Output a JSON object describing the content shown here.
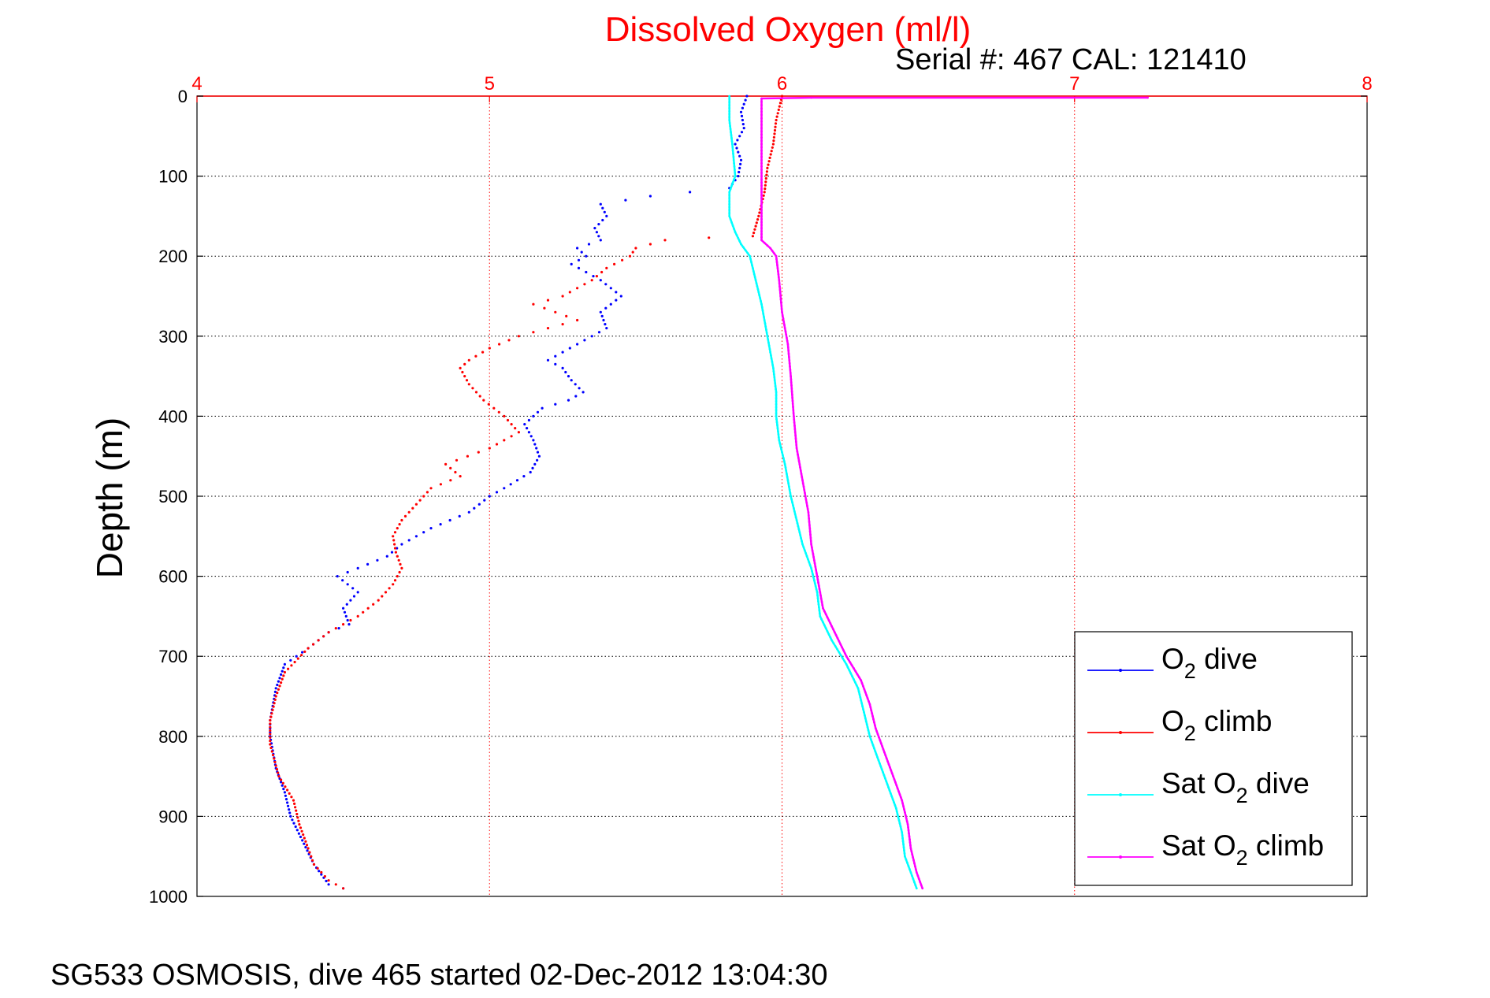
{
  "chart_data": {
    "type": "scatter",
    "title": "Dissolved Oxygen (ml/l)",
    "subtitle": "Serial #: 467  CAL: 121410",
    "xlabel": "",
    "ylabel": "Depth (m)",
    "xlim": [
      4,
      8
    ],
    "ylim": [
      1000,
      0
    ],
    "x_ticks": [
      "4",
      "5",
      "6",
      "7",
      "8"
    ],
    "y_ticks": [
      "0",
      "100",
      "200",
      "300",
      "400",
      "500",
      "600",
      "700",
      "800",
      "900",
      "1000"
    ],
    "grid": true,
    "legend_position": "bottom-right",
    "footer": "SG533 OSMOSIS, dive 465 started 02-Dec-2012 13:04:30",
    "colors": {
      "title": "#ff0000",
      "x_ticks": "#ff0000",
      "grid": "#000000",
      "x_grid": "#ff0000"
    },
    "series": [
      {
        "name": "O2 dive",
        "legend": {
          "base": "O",
          "sub": "2",
          "rest": " dive"
        },
        "color": "#0000ff",
        "style": "points",
        "points": [
          [
            5.88,
            0
          ],
          [
            5.86,
            20
          ],
          [
            5.87,
            40
          ],
          [
            5.84,
            60
          ],
          [
            5.86,
            80
          ],
          [
            5.85,
            100
          ],
          [
            5.82,
            115
          ],
          [
            5.55,
            125
          ],
          [
            5.38,
            135
          ],
          [
            5.4,
            150
          ],
          [
            5.36,
            165
          ],
          [
            5.38,
            180
          ],
          [
            5.3,
            190
          ],
          [
            5.33,
            200
          ],
          [
            5.28,
            210
          ],
          [
            5.38,
            230
          ],
          [
            5.45,
            250
          ],
          [
            5.38,
            270
          ],
          [
            5.4,
            290
          ],
          [
            5.3,
            310
          ],
          [
            5.2,
            330
          ],
          [
            5.25,
            340
          ],
          [
            5.28,
            355
          ],
          [
            5.32,
            370
          ],
          [
            5.27,
            380
          ],
          [
            5.18,
            390
          ],
          [
            5.12,
            410
          ],
          [
            5.15,
            430
          ],
          [
            5.17,
            450
          ],
          [
            5.14,
            470
          ],
          [
            5.05,
            490
          ],
          [
            5.0,
            500
          ],
          [
            4.93,
            520
          ],
          [
            4.8,
            540
          ],
          [
            4.7,
            560
          ],
          [
            4.65,
            575
          ],
          [
            4.55,
            590
          ],
          [
            4.48,
            600
          ],
          [
            4.55,
            620
          ],
          [
            4.5,
            640
          ],
          [
            4.52,
            660
          ],
          [
            4.45,
            670
          ],
          [
            4.38,
            690
          ],
          [
            4.3,
            710
          ],
          [
            4.27,
            740
          ],
          [
            4.25,
            780
          ],
          [
            4.25,
            800
          ],
          [
            4.27,
            840
          ],
          [
            4.3,
            870
          ],
          [
            4.32,
            900
          ],
          [
            4.36,
            930
          ],
          [
            4.4,
            960
          ],
          [
            4.45,
            985
          ],
          [
            4.5,
            990
          ]
        ]
      },
      {
        "name": "O2 climb",
        "legend": {
          "base": "O",
          "sub": "2",
          "rest": " climb"
        },
        "color": "#ff0000",
        "style": "points",
        "points": [
          [
            6.0,
            0
          ],
          [
            5.98,
            30
          ],
          [
            5.97,
            60
          ],
          [
            5.95,
            90
          ],
          [
            5.94,
            120
          ],
          [
            5.92,
            150
          ],
          [
            5.9,
            175
          ],
          [
            5.75,
            177
          ],
          [
            5.6,
            180
          ],
          [
            5.5,
            190
          ],
          [
            5.48,
            200
          ],
          [
            5.4,
            215
          ],
          [
            5.35,
            230
          ],
          [
            5.25,
            250
          ],
          [
            5.15,
            260
          ],
          [
            5.3,
            280
          ],
          [
            5.1,
            300
          ],
          [
            5.0,
            315
          ],
          [
            4.93,
            330
          ],
          [
            4.9,
            340
          ],
          [
            4.93,
            360
          ],
          [
            4.98,
            380
          ],
          [
            5.05,
            400
          ],
          [
            5.1,
            420
          ],
          [
            5.0,
            440
          ],
          [
            4.85,
            460
          ],
          [
            4.9,
            475
          ],
          [
            4.8,
            490
          ],
          [
            4.75,
            510
          ],
          [
            4.7,
            530
          ],
          [
            4.67,
            550
          ],
          [
            4.68,
            570
          ],
          [
            4.7,
            590
          ],
          [
            4.67,
            610
          ],
          [
            4.62,
            630
          ],
          [
            4.55,
            650
          ],
          [
            4.45,
            670
          ],
          [
            4.38,
            690
          ],
          [
            4.3,
            720
          ],
          [
            4.27,
            750
          ],
          [
            4.25,
            780
          ],
          [
            4.25,
            810
          ],
          [
            4.28,
            850
          ],
          [
            4.33,
            880
          ],
          [
            4.35,
            910
          ],
          [
            4.38,
            940
          ],
          [
            4.4,
            960
          ],
          [
            4.45,
            980
          ],
          [
            4.5,
            990
          ]
        ]
      },
      {
        "name": "Sat O2 dive",
        "legend": {
          "base": "Sat O",
          "sub": "2",
          "rest": " dive"
        },
        "color": "#00ffff",
        "style": "line",
        "points": [
          [
            5.82,
            0
          ],
          [
            5.82,
            30
          ],
          [
            5.83,
            60
          ],
          [
            5.84,
            100
          ],
          [
            5.82,
            120
          ],
          [
            5.82,
            150
          ],
          [
            5.84,
            170
          ],
          [
            5.86,
            185
          ],
          [
            5.89,
            200
          ],
          [
            5.91,
            230
          ],
          [
            5.93,
            260
          ],
          [
            5.95,
            300
          ],
          [
            5.97,
            340
          ],
          [
            5.98,
            370
          ],
          [
            5.98,
            400
          ],
          [
            5.99,
            430
          ],
          [
            6.01,
            460
          ],
          [
            6.03,
            500
          ],
          [
            6.05,
            530
          ],
          [
            6.07,
            560
          ],
          [
            6.1,
            590
          ],
          [
            6.12,
            620
          ],
          [
            6.13,
            650
          ],
          [
            6.17,
            680
          ],
          [
            6.22,
            710
          ],
          [
            6.26,
            740
          ],
          [
            6.28,
            770
          ],
          [
            6.3,
            800
          ],
          [
            6.33,
            830
          ],
          [
            6.36,
            860
          ],
          [
            6.39,
            890
          ],
          [
            6.41,
            920
          ],
          [
            6.42,
            950
          ],
          [
            6.44,
            970
          ],
          [
            6.46,
            990
          ]
        ]
      },
      {
        "name": "Sat O2 climb",
        "legend": {
          "base": "Sat O",
          "sub": "2",
          "rest": " climb"
        },
        "color": "#ff00ff",
        "style": "line",
        "points": [
          [
            7.25,
            2
          ],
          [
            6.1,
            2
          ],
          [
            5.93,
            3
          ],
          [
            5.93,
            40
          ],
          [
            5.93,
            80
          ],
          [
            5.93,
            120
          ],
          [
            5.93,
            150
          ],
          [
            5.93,
            180
          ],
          [
            5.96,
            190
          ],
          [
            5.98,
            200
          ],
          [
            5.99,
            230
          ],
          [
            6.0,
            270
          ],
          [
            6.02,
            310
          ],
          [
            6.03,
            350
          ],
          [
            6.04,
            400
          ],
          [
            6.05,
            440
          ],
          [
            6.07,
            480
          ],
          [
            6.09,
            520
          ],
          [
            6.1,
            560
          ],
          [
            6.12,
            600
          ],
          [
            6.14,
            640
          ],
          [
            6.18,
            670
          ],
          [
            6.22,
            700
          ],
          [
            6.27,
            730
          ],
          [
            6.3,
            760
          ],
          [
            6.32,
            790
          ],
          [
            6.35,
            820
          ],
          [
            6.38,
            850
          ],
          [
            6.41,
            880
          ],
          [
            6.43,
            910
          ],
          [
            6.44,
            940
          ],
          [
            6.46,
            970
          ],
          [
            6.48,
            990
          ]
        ]
      }
    ]
  }
}
